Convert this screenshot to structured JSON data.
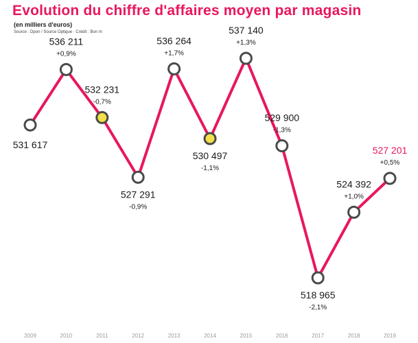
{
  "header": {
    "title": "Evolution du chiffre d'affaires moyen par magasin",
    "subtitle": "(en milliers d'euros)",
    "source": "Source : Dpon / Source Optique · Crédit : Bon m"
  },
  "colors": {
    "line": "#e8175d",
    "marker_stroke": "#4a4a4a",
    "marker_fill": "#ffffff",
    "marker_fill_special": "#f2e04a",
    "highlight_text": "#e8175d"
  },
  "chart_data": {
    "type": "line",
    "title": "Evolution du chiffre d'affaires moyen par magasin",
    "ylabel": "",
    "xlabel": "",
    "ylim": [
      515000,
      540000
    ],
    "grid": false,
    "categories": [
      "2009",
      "2010",
      "2011",
      "2012",
      "2013",
      "2014",
      "2015",
      "2016",
      "2017",
      "2018",
      "2019"
    ],
    "series": [
      {
        "values": [
          531617,
          536211,
          532231,
          527291,
          536264,
          530497,
          537140,
          529900,
          518965,
          524392,
          527201
        ]
      }
    ],
    "value_labels": [
      "531 617",
      "536 211",
      "532 231",
      "527 291",
      "536 264",
      "530 497",
      "537 140",
      "529 900",
      "518 965",
      "524 392",
      "527 201"
    ],
    "change_labels": [
      "",
      "+0,9%",
      "-0,7%",
      "-0,9%",
      "+1,7%",
      "-1,1%",
      "+1,3%",
      "-1,3%",
      "-2,1%",
      "+1,0%",
      "+0,5%"
    ],
    "label_positions": [
      "below",
      "above",
      "above",
      "below",
      "above",
      "below",
      "above",
      "above",
      "below",
      "above",
      "above"
    ],
    "special_markers": [
      2,
      5
    ],
    "highlight_last": true
  }
}
